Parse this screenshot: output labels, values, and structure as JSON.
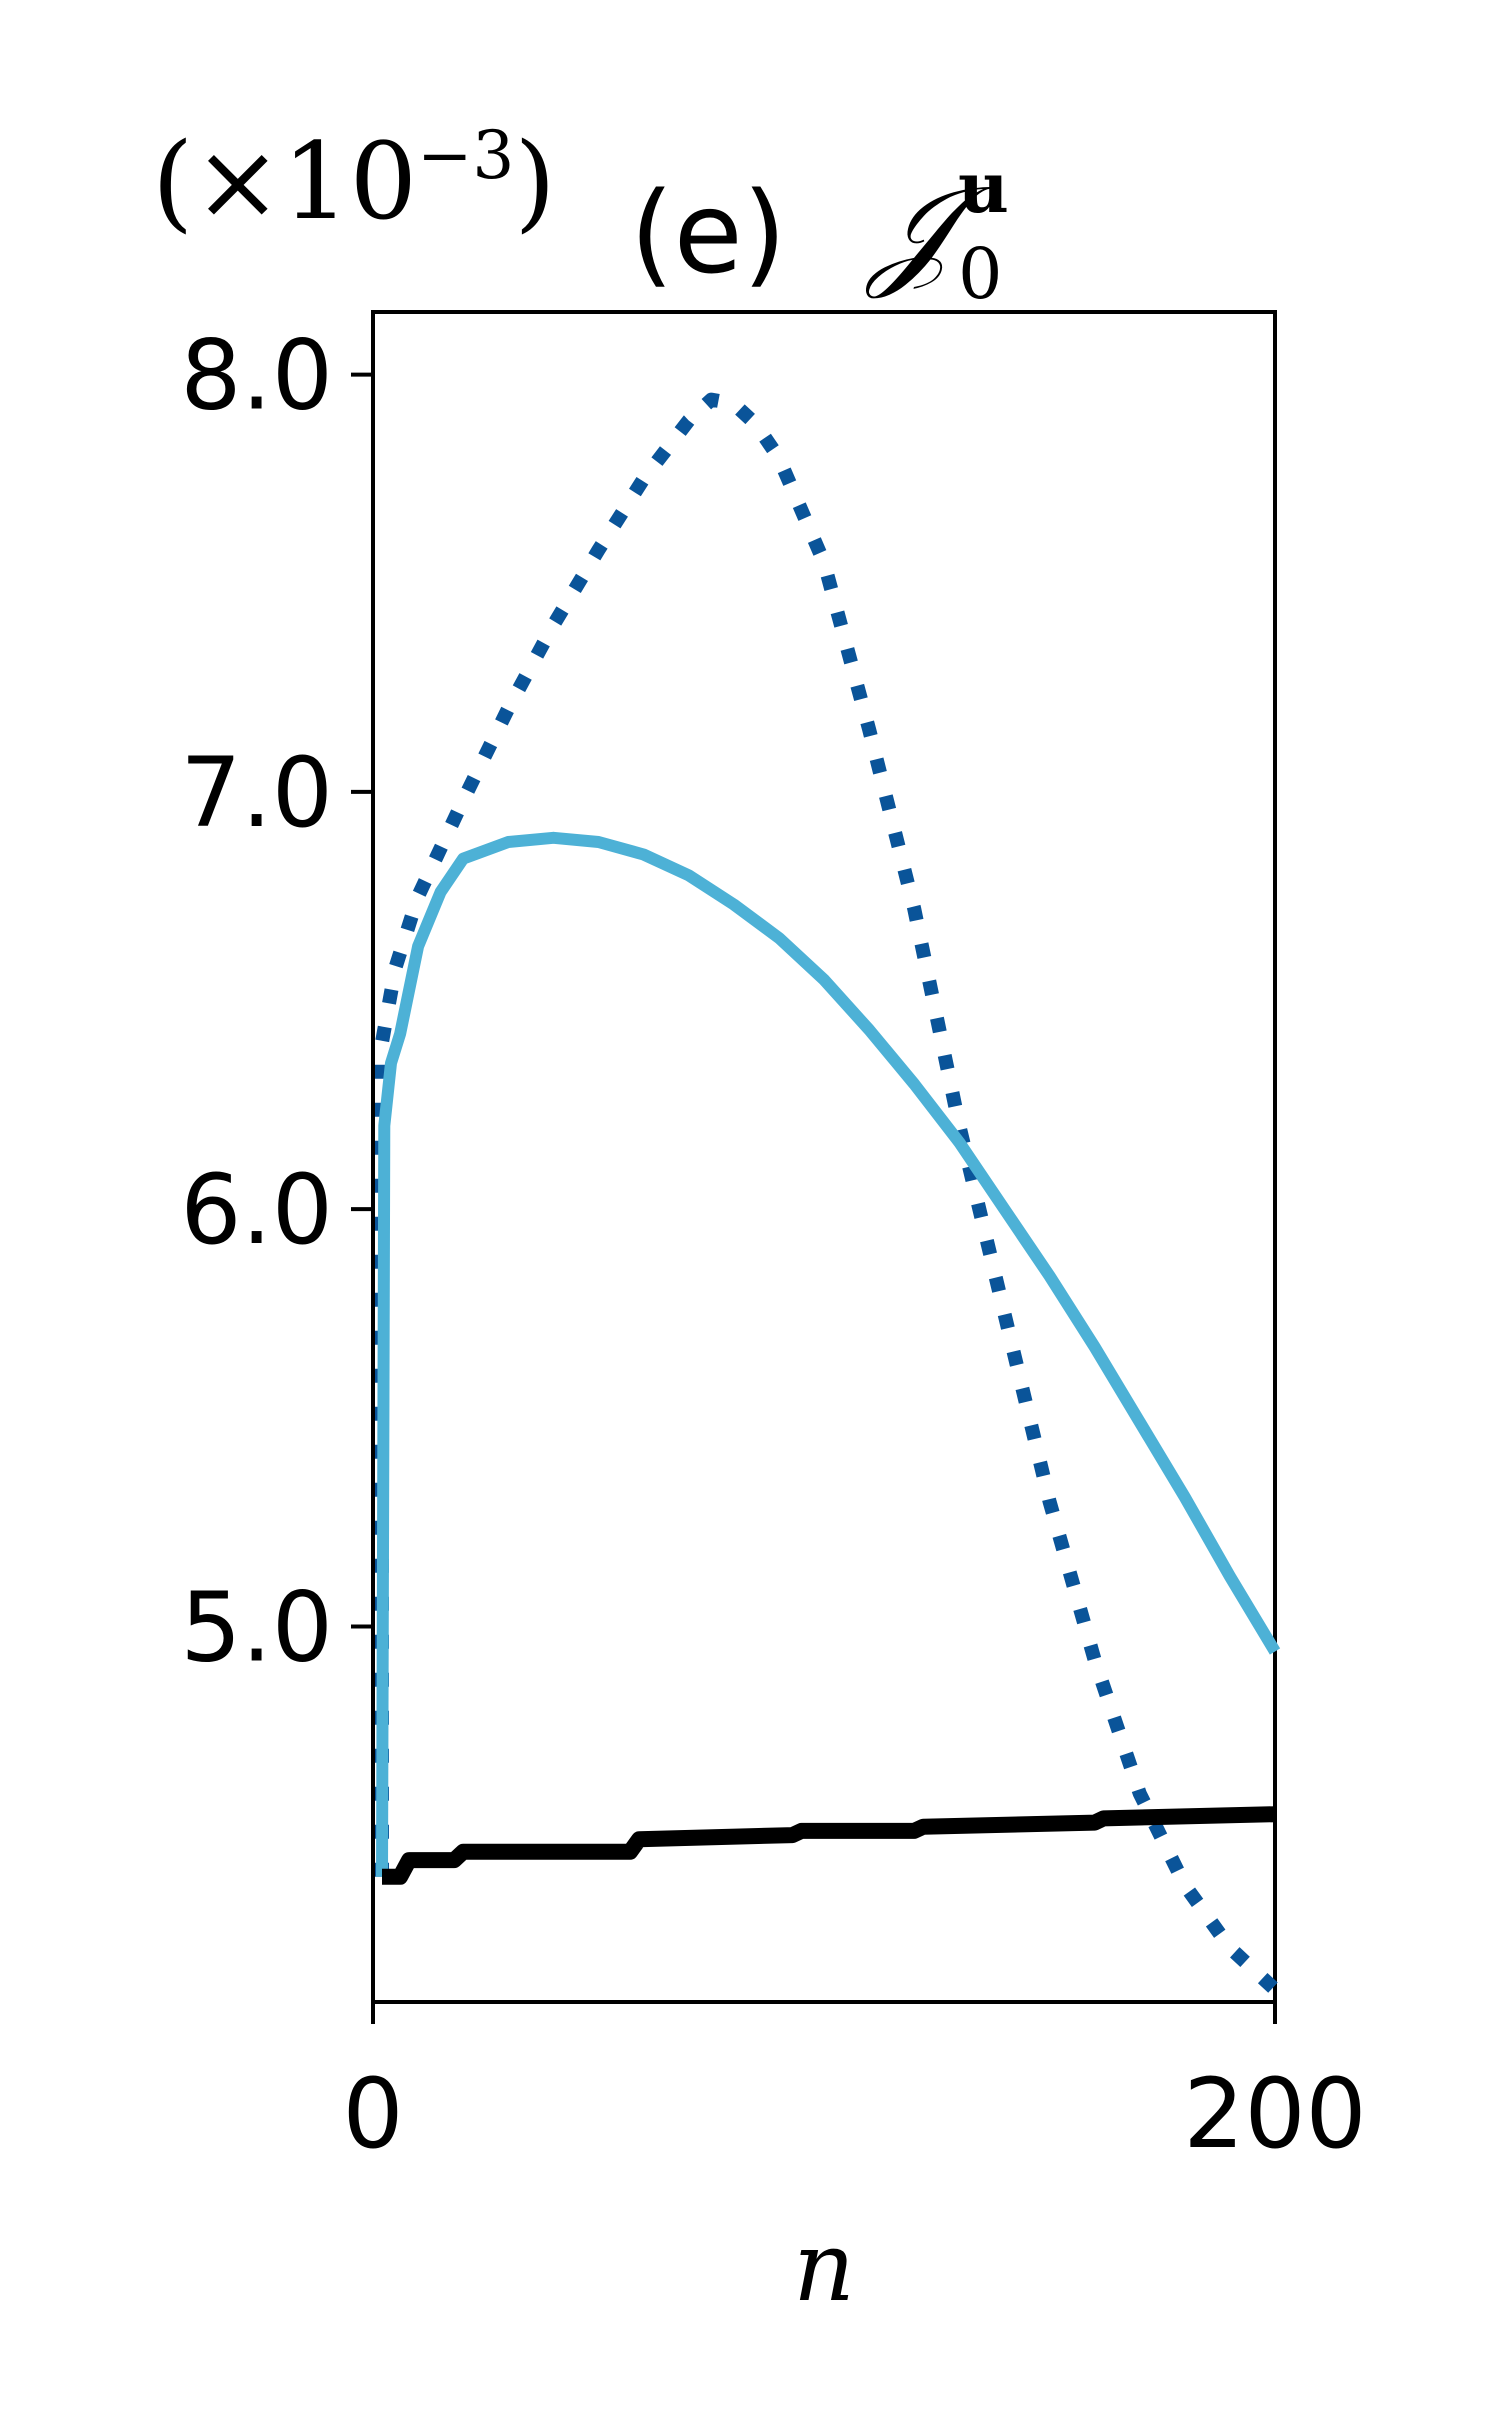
{
  "chart_data": {
    "type": "line",
    "title": {
      "prefix": "(e) ",
      "symbol": "𝒥",
      "superscript": "u",
      "subscript": "0"
    },
    "scale_label": {
      "open": "(×10",
      "exponent": "−3",
      "close": ")"
    },
    "xlabel": "n",
    "ylabel": "",
    "xlim": [
      0,
      200
    ],
    "ylim": [
      4.1,
      8.15
    ],
    "x_ticks": [
      {
        "value": 0,
        "label": "0"
      },
      {
        "value": 200,
        "label": "200"
      }
    ],
    "y_ticks": [
      {
        "value": 5.0,
        "label": "5.0"
      },
      {
        "value": 6.0,
        "label": "6.0"
      },
      {
        "value": 7.0,
        "label": "7.0"
      },
      {
        "value": 8.0,
        "label": "8.0"
      }
    ],
    "grid": false,
    "legend": "none",
    "series": [
      {
        "color": "#0a5499",
        "style": "dotted",
        "points": [
          [
            2,
            4.4
          ],
          [
            2,
            6.4
          ],
          [
            5,
            6.58
          ],
          [
            10,
            6.75
          ],
          [
            20,
            6.98
          ],
          [
            30,
            7.2
          ],
          [
            40,
            7.4
          ],
          [
            50,
            7.58
          ],
          [
            60,
            7.75
          ],
          [
            70,
            7.89
          ],
          [
            75,
            7.94
          ],
          [
            80,
            7.93
          ],
          [
            85,
            7.88
          ],
          [
            90,
            7.8
          ],
          [
            100,
            7.55
          ],
          [
            110,
            7.15
          ],
          [
            120,
            6.72
          ],
          [
            130,
            6.2
          ],
          [
            140,
            5.75
          ],
          [
            150,
            5.3
          ],
          [
            160,
            4.92
          ],
          [
            170,
            4.6
          ],
          [
            180,
            4.38
          ],
          [
            190,
            4.23
          ],
          [
            200,
            4.13
          ]
        ]
      },
      {
        "color": "#4db1d6",
        "style": "solid",
        "points": [
          [
            2,
            4.4
          ],
          [
            2.5,
            6.2
          ],
          [
            4,
            6.35
          ],
          [
            6,
            6.42
          ],
          [
            10,
            6.63
          ],
          [
            15,
            6.76
          ],
          [
            20,
            6.84
          ],
          [
            30,
            6.88
          ],
          [
            40,
            6.89
          ],
          [
            50,
            6.88
          ],
          [
            60,
            6.85
          ],
          [
            70,
            6.8
          ],
          [
            80,
            6.73
          ],
          [
            90,
            6.65
          ],
          [
            100,
            6.55
          ],
          [
            110,
            6.43
          ],
          [
            120,
            6.3
          ],
          [
            130,
            6.16
          ],
          [
            140,
            6.0
          ],
          [
            150,
            5.84
          ],
          [
            160,
            5.67
          ],
          [
            170,
            5.49
          ],
          [
            180,
            5.31
          ],
          [
            190,
            5.12
          ],
          [
            200,
            4.94
          ]
        ]
      },
      {
        "color": "#000000",
        "style": "solid",
        "points": [
          [
            2,
            4.4
          ],
          [
            6,
            4.4
          ],
          [
            8,
            4.44
          ],
          [
            18,
            4.44
          ],
          [
            20,
            4.46
          ],
          [
            57,
            4.46
          ],
          [
            59,
            4.49
          ],
          [
            93,
            4.5
          ],
          [
            95,
            4.51
          ],
          [
            120,
            4.51
          ],
          [
            122,
            4.52
          ],
          [
            160,
            4.53
          ],
          [
            162,
            4.54
          ],
          [
            200,
            4.55
          ]
        ]
      }
    ]
  }
}
